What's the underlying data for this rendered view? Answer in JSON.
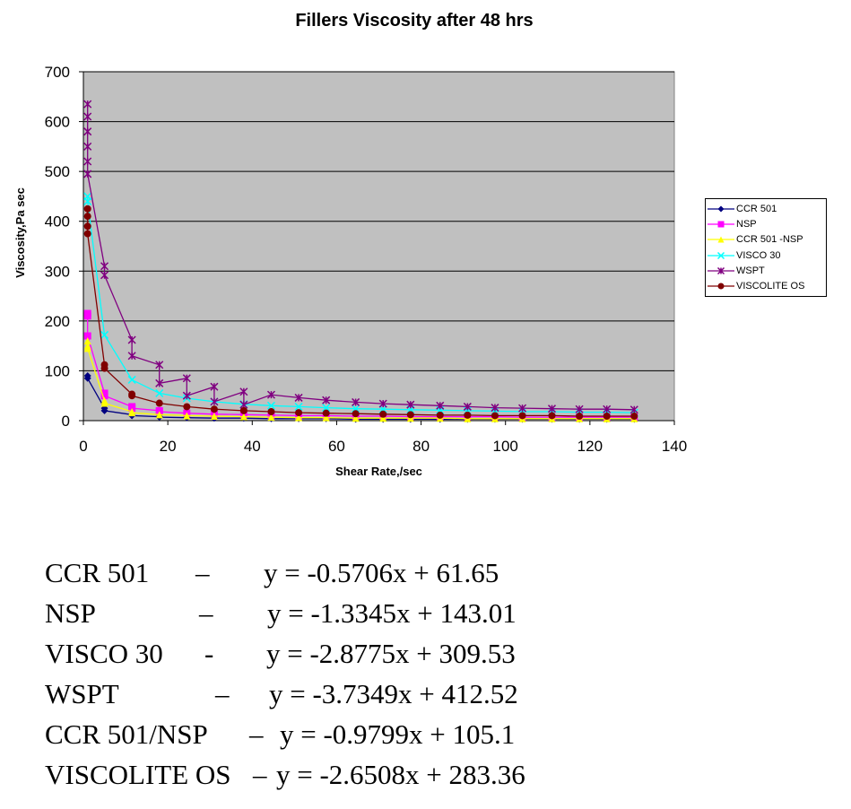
{
  "chart_data": {
    "type": "line",
    "title": "Fillers Viscosity after 48 hrs",
    "xlabel": "Shear Rate,/sec",
    "ylabel": "Viscosity,Pa sec",
    "xlim": [
      0,
      140
    ],
    "ylim": [
      0,
      700
    ],
    "x_ticks": [
      0,
      20,
      40,
      60,
      80,
      100,
      120,
      140
    ],
    "y_ticks": [
      0,
      100,
      200,
      300,
      400,
      500,
      600,
      700
    ],
    "grid": "horizontal",
    "legend_position": "right",
    "plot_background": "#c0c0c0",
    "series": [
      {
        "name": "CCR 501",
        "color": "#000080",
        "marker": "diamond",
        "x": [
          1,
          1,
          5,
          5,
          11.5,
          11.5,
          18,
          18,
          24.5,
          31,
          38,
          44.5,
          51,
          57.5,
          64.5,
          71,
          77.5,
          84.5,
          91,
          97.5,
          104,
          111,
          117.5,
          124,
          130.5
        ],
        "y": [
          90,
          85,
          25,
          20,
          12,
          10,
          8,
          7,
          6,
          5,
          5,
          4,
          4,
          4,
          3,
          3,
          3,
          3,
          3,
          3,
          3,
          3,
          3,
          3,
          3
        ]
      },
      {
        "name": "NSP",
        "color": "#ff00ff",
        "marker": "square",
        "x": [
          1,
          1,
          1,
          5,
          5,
          11.5,
          11.5,
          18,
          18,
          24.5,
          31,
          38,
          44.5,
          51,
          57.5,
          64.5,
          71,
          77.5,
          84.5,
          91,
          97.5,
          104,
          111,
          117.5,
          124,
          130.5
        ],
        "y": [
          215,
          210,
          170,
          55,
          50,
          28,
          25,
          20,
          18,
          15,
          13,
          12,
          11,
          10,
          10,
          9,
          9,
          8,
          8,
          8,
          8,
          7,
          7,
          7,
          7,
          7
        ]
      },
      {
        "name": "CCR 501 -NSP",
        "color": "#ffff00",
        "marker": "triangle",
        "x": [
          1,
          1,
          1,
          5,
          5,
          11.5,
          11.5,
          18,
          24.5,
          31,
          38,
          44.5,
          51,
          57.5,
          64.5,
          71,
          77.5,
          84.5,
          91,
          97.5,
          104,
          111,
          117.5,
          124,
          130.5
        ],
        "y": [
          160,
          150,
          145,
          40,
          35,
          18,
          16,
          12,
          10,
          9,
          8,
          7,
          6,
          6,
          5,
          5,
          5,
          5,
          4,
          4,
          4,
          4,
          4,
          4,
          4
        ]
      },
      {
        "name": "VISCO 30",
        "color": "#00ffff",
        "marker": "x",
        "x": [
          1,
          1,
          5,
          11.5,
          18,
          24.5,
          31,
          38,
          44.5,
          51,
          57.5,
          64.5,
          71,
          77.5,
          84.5,
          91,
          97.5,
          104,
          111,
          117.5,
          124,
          130.5
        ],
        "y": [
          450,
          440,
          172,
          82,
          55,
          45,
          38,
          33,
          30,
          28,
          26,
          24,
          23,
          22,
          21,
          20,
          19,
          18,
          18,
          17,
          17,
          16
        ]
      },
      {
        "name": "WSPT",
        "color": "#800080",
        "marker": "star",
        "x": [
          1,
          1,
          1,
          1,
          1,
          1,
          5,
          5,
          11.5,
          11.5,
          18,
          18,
          24.5,
          24.5,
          31,
          31,
          38,
          38,
          44.5,
          51,
          57.5,
          64.5,
          71,
          77.5,
          84.5,
          91,
          97.5,
          104,
          111,
          117.5,
          124,
          130.5
        ],
        "y": [
          635,
          610,
          580,
          550,
          520,
          495,
          310,
          292,
          162,
          130,
          112,
          75,
          85,
          50,
          68,
          38,
          58,
          32,
          52,
          46,
          41,
          37,
          34,
          32,
          30,
          28,
          26,
          25,
          24,
          23,
          23,
          22
        ]
      },
      {
        "name": "VISCOLITE OS",
        "color": "#800000",
        "marker": "circle",
        "x": [
          1,
          1,
          1,
          1,
          5,
          5,
          11.5,
          11.5,
          18,
          24.5,
          31,
          38,
          44.5,
          51,
          57.5,
          64.5,
          71,
          77.5,
          84.5,
          91,
          97.5,
          104,
          111,
          117.5,
          124,
          130.5
        ],
        "y": [
          425,
          410,
          390,
          375,
          112,
          105,
          53,
          50,
          35,
          28,
          23,
          20,
          18,
          16,
          15,
          14,
          13,
          12,
          11,
          11,
          10,
          10,
          10,
          9,
          9,
          9
        ]
      }
    ]
  },
  "equations": [
    {
      "name": "CCR 501",
      "sep": "–",
      "formula": "y = -0.5706x + 61.65"
    },
    {
      "name": "NSP",
      "sep": "–",
      "formula": "y = -1.3345x + 143.01"
    },
    {
      "name": "VISCO 30",
      "sep": "-",
      "formula": "y = -2.8775x + 309.53"
    },
    {
      "name": "WSPT",
      "sep": "–",
      "formula": "y = -3.7349x + 412.52"
    },
    {
      "name": "CCR 501/NSP",
      "sep": "–",
      "formula": "y = -0.9799x + 105.1"
    },
    {
      "name": "VISCOLITE OS",
      "sep": "–",
      "formula": "y = -2.6508x + 283.36"
    }
  ]
}
